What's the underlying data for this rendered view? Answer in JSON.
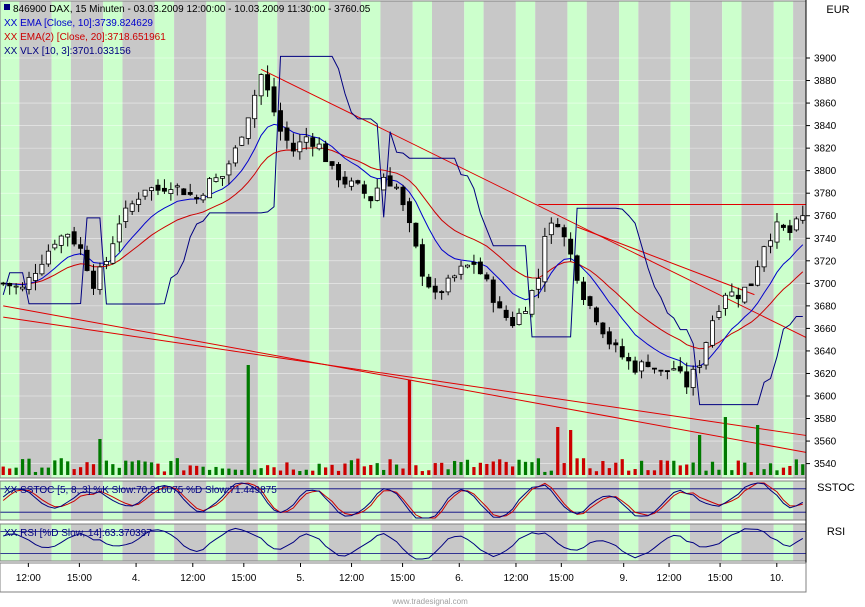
{
  "header": {
    "title": "846900  DAX, 15 Minuten - 03.03.2009 12:00:00 - 10.03.2009 11:30:00 - 3760.05",
    "legend": [
      {
        "text": "XX EMA [Close, 10]:3739.824629",
        "color": "#0000cc"
      },
      {
        "text": "XX EMA(2) [Close, 20]:3718.651961",
        "color": "#cc0000"
      },
      {
        "text": "XX VLX [10, 3]:3701.033156",
        "color": "#000080"
      }
    ]
  },
  "panels": {
    "price_currency": "EUR",
    "sstoc_label": "SSTOC",
    "sstoc_legend": "XX SSTOC [5, 8, 3] %K Slow:70.216075 %D Slow:71.449875",
    "rsi_label": "RSI",
    "rsi_legend": "XX RSI [%D Slow, 14]:63.370397",
    "watermark": "www.tradesignal.com"
  },
  "colors": {
    "zone_green": "#ccffcc",
    "zone_gray": "#c8c8c8",
    "candle": "#000000",
    "ema10": "#0000cc",
    "ema20": "#cc0000",
    "vlx": "#000080",
    "volume": "#007a00",
    "volume_down": "#cc0000",
    "trendline": "#e00000"
  },
  "chart_data": {
    "type": "candlestick",
    "title": "846900  DAX, 15 Minuten - 03.03.2009 12:00:00 - 10.03.2009 11:30:00 - 3760.05",
    "ylim": [
      3530,
      3930
    ],
    "yticks": [
      3540,
      3560,
      3580,
      3600,
      3620,
      3640,
      3660,
      3680,
      3700,
      3720,
      3740,
      3760,
      3780,
      3800,
      3820,
      3840,
      3860,
      3880,
      3900
    ],
    "xticks": [
      "12:00",
      "15:00",
      "4.",
      "12:00",
      "15:00",
      "5.",
      "12:00",
      "15:00",
      "6.",
      "12:00",
      "15:00",
      "9.",
      "12:00",
      "15:00",
      "10."
    ],
    "close_path": [
      [
        0,
        3700
      ],
      [
        3,
        3695
      ],
      [
        5,
        3712
      ],
      [
        8,
        3738
      ],
      [
        10,
        3745
      ],
      [
        12,
        3730
      ],
      [
        14,
        3700
      ],
      [
        16,
        3720
      ],
      [
        18,
        3755
      ],
      [
        20,
        3770
      ],
      [
        22,
        3785
      ],
      [
        24,
        3783
      ],
      [
        26,
        3788
      ],
      [
        28,
        3782
      ],
      [
        30,
        3775
      ],
      [
        32,
        3790
      ],
      [
        34,
        3795
      ],
      [
        36,
        3818
      ],
      [
        38,
        3850
      ],
      [
        40,
        3885
      ],
      [
        41,
        3870
      ],
      [
        43,
        3835
      ],
      [
        45,
        3818
      ],
      [
        47,
        3830
      ],
      [
        49,
        3822
      ],
      [
        51,
        3800
      ],
      [
        53,
        3790
      ],
      [
        55,
        3785
      ],
      [
        57,
        3775
      ],
      [
        59,
        3795
      ],
      [
        61,
        3785
      ],
      [
        63,
        3750
      ],
      [
        65,
        3710
      ],
      [
        67,
        3688
      ],
      [
        69,
        3700
      ],
      [
        71,
        3712
      ],
      [
        73,
        3718
      ],
      [
        75,
        3700
      ],
      [
        77,
        3675
      ],
      [
        79,
        3665
      ],
      [
        81,
        3680
      ],
      [
        83,
        3705
      ],
      [
        84,
        3745
      ],
      [
        86,
        3755
      ],
      [
        88,
        3725
      ],
      [
        90,
        3690
      ],
      [
        92,
        3670
      ],
      [
        94,
        3648
      ],
      [
        96,
        3635
      ],
      [
        98,
        3625
      ],
      [
        100,
        3630
      ],
      [
        102,
        3620
      ],
      [
        104,
        3625
      ],
      [
        106,
        3610
      ],
      [
        108,
        3630
      ],
      [
        110,
        3668
      ],
      [
        112,
        3692
      ],
      [
        114,
        3690
      ],
      [
        116,
        3700
      ],
      [
        118,
        3735
      ],
      [
        120,
        3750
      ],
      [
        122,
        3745
      ],
      [
        124,
        3760
      ]
    ],
    "bars": 125,
    "last_close": 3760.05,
    "series": [
      {
        "name": "EMA [Close, 10]",
        "last": 3739.824629
      },
      {
        "name": "EMA(2) [Close, 20]",
        "last": 3718.651961
      },
      {
        "name": "VLX [10, 3]",
        "last": 3701.033156
      },
      {
        "name": "SSTOC %K Slow",
        "last": 70.216075
      },
      {
        "name": "SSTOC %D Slow",
        "last": 71.449875
      },
      {
        "name": "RSI [%D Slow, 14]",
        "last": 63.370397
      }
    ],
    "trendlines": [
      {
        "from": [
          40,
          3890
        ],
        "to": [
          124,
          3652
        ]
      },
      {
        "from": [
          83,
          3770
        ],
        "to": [
          124,
          3770
        ]
      },
      {
        "from": [
          0,
          3670
        ],
        "to": [
          124,
          3565
        ]
      },
      {
        "from": [
          0,
          3680
        ],
        "to": [
          124,
          3550
        ]
      },
      {
        "from": [
          89,
          3750
        ],
        "to": [
          116,
          3690
        ]
      }
    ]
  }
}
